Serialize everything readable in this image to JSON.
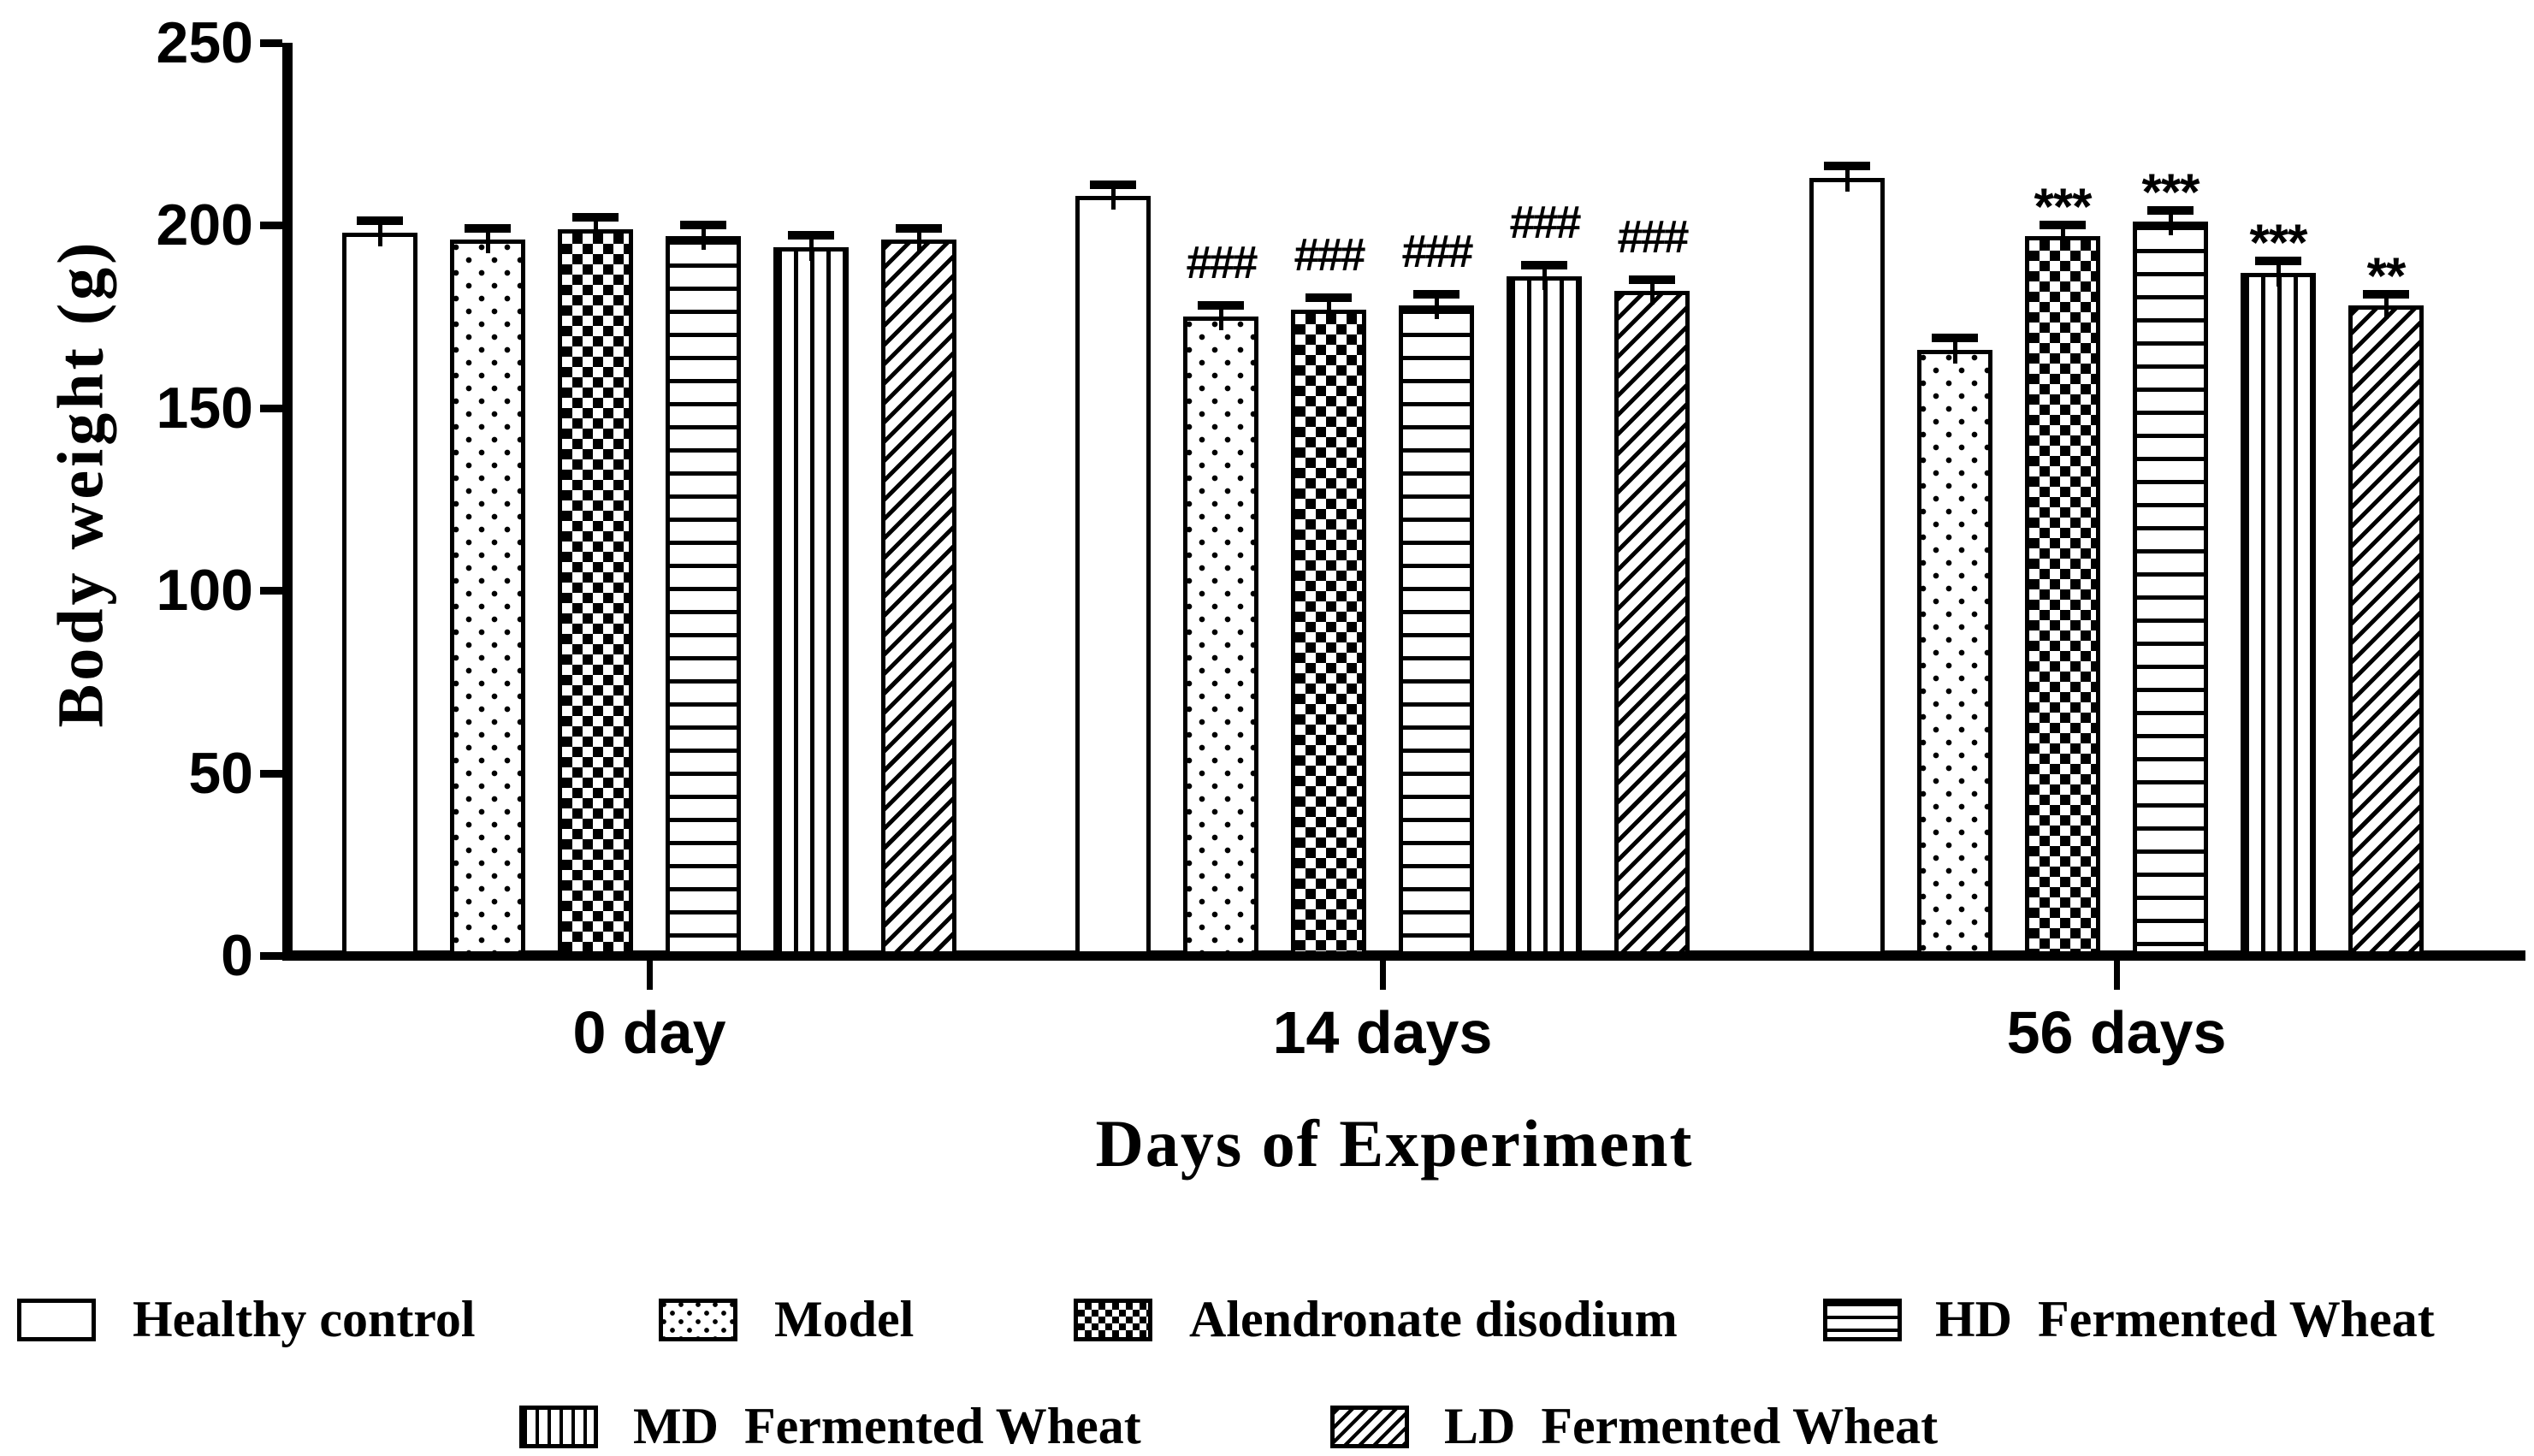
{
  "figure": {
    "y_axis_title": "Body weight (g)",
    "x_axis_title": "Days of Experiment",
    "y_tick_labels": [
      "0",
      "50",
      "100",
      "150",
      "200",
      "250"
    ],
    "x_category_labels": [
      "0 day",
      "14 days",
      "56 days"
    ]
  },
  "chart_data": {
    "type": "bar",
    "title": "",
    "xlabel": "Days of Experiment",
    "ylabel": "Body weight (g)",
    "ylim": [
      0,
      250
    ],
    "yticks": [
      0,
      50,
      100,
      150,
      200,
      250
    ],
    "grid": false,
    "legend_position": "bottom",
    "categories": [
      "0 day",
      "14 days",
      "56 days"
    ],
    "series": [
      {
        "name": "Healthy control",
        "pattern": "plain",
        "values": [
          198,
          208,
          213
        ],
        "errors": [
          2,
          2,
          2
        ],
        "annotations": [
          "",
          "",
          ""
        ]
      },
      {
        "name": "Model",
        "pattern": "dots",
        "values": [
          196,
          175,
          166
        ],
        "errors": [
          2,
          2,
          2
        ],
        "annotations": [
          "",
          "###",
          ""
        ]
      },
      {
        "name": "Alendronate disodium",
        "pattern": "checker",
        "values": [
          199,
          177,
          197
        ],
        "errors": [
          2,
          2,
          2
        ],
        "annotations": [
          "",
          "###",
          "***"
        ]
      },
      {
        "name": "HD Fermented Wheat",
        "pattern": "hlines",
        "values": [
          197,
          178,
          201
        ],
        "errors": [
          2,
          2,
          2
        ],
        "annotations": [
          "",
          "###",
          "***"
        ]
      },
      {
        "name": "MD Fermented Wheat",
        "pattern": "vlines",
        "values": [
          194,
          186,
          187
        ],
        "errors": [
          2,
          2,
          2
        ],
        "annotations": [
          "",
          "###",
          "***"
        ]
      },
      {
        "name": "LD Fermented Wheat",
        "pattern": "diag",
        "values": [
          196,
          182,
          178
        ],
        "errors": [
          2,
          2,
          2
        ],
        "annotations": [
          "",
          "###",
          "**"
        ]
      }
    ],
    "significance_symbols": {
      "hash": "###",
      "star3": "***",
      "star2": "**"
    }
  },
  "legend": {
    "items": [
      {
        "label": "Healthy control"
      },
      {
        "label": "Model"
      },
      {
        "label": "Alendronate disodium"
      },
      {
        "label": "HD  Fermented Wheat"
      },
      {
        "label": "MD  Fermented Wheat"
      },
      {
        "label": "LD  Fermented Wheat"
      }
    ]
  },
  "colors": {
    "ink": "#000000",
    "background": "#ffffff"
  }
}
